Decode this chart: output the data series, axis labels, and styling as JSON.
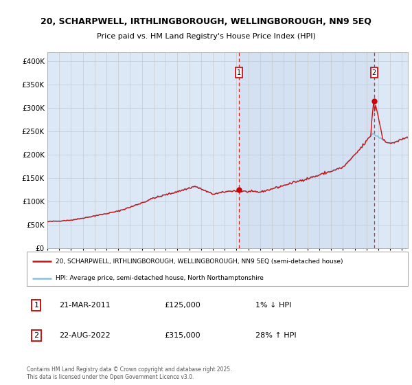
{
  "title_line1": "20, SCHARPWELL, IRTHLINGBOROUGH, WELLINGBOROUGH, NN9 5EQ",
  "title_line2": "Price paid vs. HM Land Registry's House Price Index (HPI)",
  "legend_line1": "20, SCHARPWELL, IRTHLINGBOROUGH, WELLINGBOROUGH, NN9 5EQ (semi-detached house)",
  "legend_line2": "HPI: Average price, semi-detached house, North Northamptonshire",
  "sale1_label": "1",
  "sale1_date": "21-MAR-2011",
  "sale1_price": "£125,000",
  "sale1_hpi": "1% ↓ HPI",
  "sale2_label": "2",
  "sale2_date": "22-AUG-2022",
  "sale2_price": "£315,000",
  "sale2_hpi": "28% ↑ HPI",
  "footer": "Contains HM Land Registry data © Crown copyright and database right 2025.\nThis data is licensed under the Open Government Licence v3.0.",
  "sale1_year": 2011.22,
  "sale2_year": 2022.64,
  "sale1_value": 125000,
  "sale2_value": 315000,
  "hpi_color": "#8bbcda",
  "price_color": "#cc1111",
  "marker_color": "#cc0000",
  "grid_color": "#c8c8c8",
  "vline_color": "#dd2222",
  "plot_bg": "#dce8f5",
  "fig_bg": "#ffffff",
  "ylim_max": 420000,
  "yticks": [
    0,
    50000,
    100000,
    150000,
    200000,
    250000,
    300000,
    350000,
    400000
  ],
  "ylabels": [
    "£0",
    "£50K",
    "£100K",
    "£150K",
    "£200K",
    "£250K",
    "£300K",
    "£350K",
    "£400K"
  ],
  "year_start": 1995,
  "year_end": 2025
}
